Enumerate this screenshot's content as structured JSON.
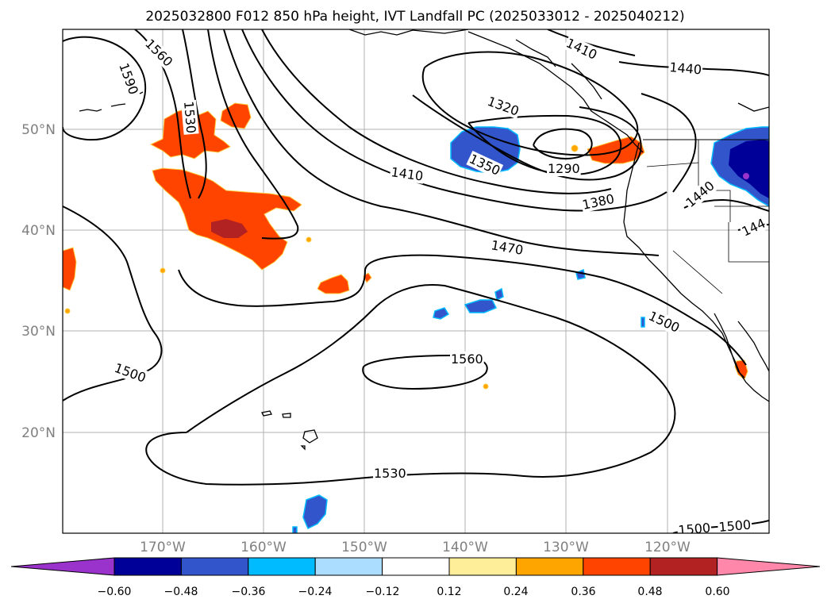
{
  "title": "2025032800 F012 850 hPa height, IVT Landfall PC (2025033012 - 2025040212)",
  "lat_ticks": [
    "50°N",
    "40°N",
    "30°N",
    "20°N"
  ],
  "lon_ticks": [
    "170°W",
    "160°W",
    "150°W",
    "140°W",
    "130°W",
    "120°W"
  ],
  "contour_labels": {
    "c1560a": "1560",
    "c1590": "1590",
    "c1530a": "1530",
    "c1410a": "1410",
    "c1440a": "1440",
    "c1320": "1320",
    "c1350": "1350",
    "c1290": "1290",
    "c1410b": "1410",
    "c1380": "1380",
    "c1440b": "1440",
    "c1440c": "144",
    "c1470": "1470",
    "c1500a": "1500",
    "c1500b": "1500",
    "c1560b": "1560",
    "c1530b": "1530",
    "c1500c": "1500",
    "c1500d": "1500"
  },
  "colorbar": {
    "ticks": [
      "−0.60",
      "−0.48",
      "−0.36",
      "−0.24",
      "−0.12",
      "0.12",
      "0.24",
      "0.36",
      "0.48",
      "0.60"
    ],
    "colors": {
      "under": "#9933cc",
      "b1": "#000099",
      "b2": "#3355cc",
      "b3": "#00bbff",
      "b4": "#aaddff",
      "b5": "#ffffff",
      "b6": "#ffee99",
      "b7": "#ffa500",
      "b8": "#ff4400",
      "b9": "#b22222",
      "over": "#ff88aa"
    }
  },
  "field_colors": {
    "pos_orange": "#ff4400",
    "pos_dark": "#b22222",
    "pos_light": "#ffa500",
    "neg_blue": "#3355cc",
    "neg_dark": "#000099",
    "neg_cyan": "#00bbff",
    "neg_purple": "#9933cc"
  }
}
